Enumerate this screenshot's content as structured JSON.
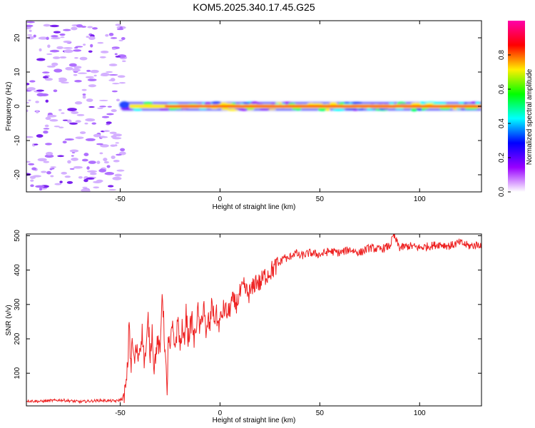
{
  "title": "KOM5.2025.340.17.45.G25",
  "chart_data": [
    {
      "type": "heatmap",
      "name": "spectrogram",
      "xlabel": "Height of straight line (km)",
      "ylabel": "Frequency (Hz)",
      "xlim": [
        -97,
        131
      ],
      "ylim": [
        -25,
        25
      ],
      "x_ticks": [
        -50,
        0,
        50,
        100
      ],
      "y_ticks": [
        -20,
        -10,
        0,
        10,
        20
      ],
      "colorbar": {
        "label": "Normalized spectral amplitude",
        "range": [
          0,
          1
        ],
        "ticks": [
          "0.0",
          "0.2",
          "0.4",
          "0.6",
          "0.8"
        ],
        "tick_values": [
          0,
          0.2,
          0.4,
          0.6,
          0.8
        ],
        "gradient": [
          "#ff00aa",
          "#ff0000",
          "#ffee00",
          "#00ff00",
          "#00ffff",
          "#0000ff",
          "#9900ff",
          "#ffffff"
        ]
      },
      "noise_region": {
        "x_range": [
          -97,
          -48
        ],
        "y_range": [
          -25,
          25
        ],
        "color": "#c080ff"
      },
      "signal_band": {
        "x_range": [
          -49,
          131
        ],
        "center_frequency": 0,
        "half_width_hz": 1
      }
    },
    {
      "type": "line",
      "name": "snr",
      "xlabel": "Height of straight line (km)",
      "ylabel": "SNR (v/v)",
      "xlim": [
        -97,
        131
      ],
      "ylim": [
        5,
        505
      ],
      "x_ticks": [
        -50,
        0,
        50,
        100
      ],
      "y_ticks": [
        100,
        200,
        300,
        400,
        500
      ],
      "color": "#ee2222",
      "series": [
        {
          "name": "SNR",
          "x": [
            -97,
            -90,
            -80,
            -70,
            -60,
            -52,
            -49,
            -47,
            -46,
            -45.5,
            -45,
            -44.5,
            -44,
            -43,
            -42,
            -41,
            -40,
            -39,
            -38,
            -37,
            -36,
            -35,
            -34,
            -33,
            -32,
            -31,
            -30,
            -29,
            -28,
            -27,
            -26.5,
            -26,
            -25,
            -24,
            -23,
            -22,
            -21,
            -20,
            -19,
            -18,
            -17,
            -16,
            -15,
            -14,
            -13,
            -12,
            -11,
            -10,
            -9,
            -8,
            -7,
            -6,
            -5,
            -4,
            -3,
            -2,
            -1,
            0,
            2,
            4,
            6,
            8,
            10,
            12,
            14,
            16,
            18,
            20,
            22,
            24,
            26,
            28,
            30,
            32,
            34,
            36,
            38,
            40,
            45,
            50,
            55,
            60,
            65,
            70,
            75,
            80,
            85,
            87,
            90,
            95,
            100,
            105,
            110,
            115,
            120,
            125,
            131
          ],
          "y": [
            20,
            18,
            22,
            17,
            21,
            19,
            25,
            60,
            150,
            270,
            160,
            120,
            200,
            130,
            170,
            150,
            180,
            220,
            140,
            160,
            260,
            150,
            230,
            110,
            170,
            190,
            150,
            350,
            220,
            100,
            20,
            210,
            160,
            240,
            180,
            200,
            260,
            170,
            230,
            190,
            280,
            200,
            230,
            260,
            190,
            240,
            280,
            220,
            260,
            310,
            190,
            260,
            230,
            320,
            250,
            280,
            240,
            250,
            290,
            270,
            310,
            300,
            330,
            350,
            330,
            340,
            370,
            360,
            380,
            390,
            400,
            410,
            420,
            440,
            430,
            445,
            450,
            440,
            450,
            445,
            455,
            450,
            460,
            450,
            465,
            460,
            470,
            500,
            465,
            470,
            465,
            470,
            475,
            470,
            480,
            470,
            475
          ]
        }
      ]
    }
  ]
}
